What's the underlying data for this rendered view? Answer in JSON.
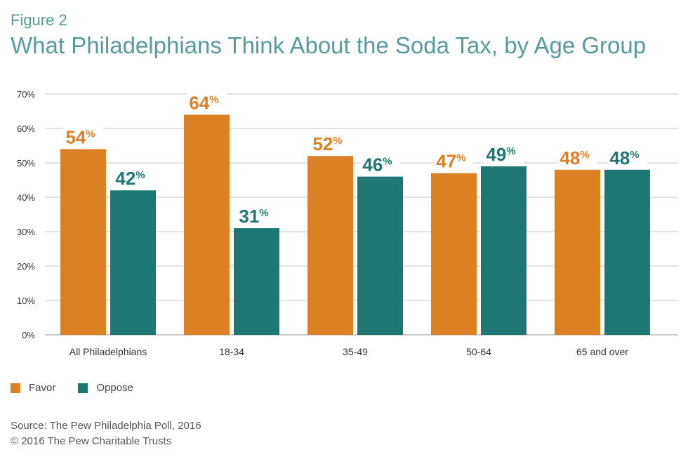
{
  "header": {
    "figure_label": "Figure 2",
    "title": "What Philadelphians Think About the Soda Tax, by Age Group"
  },
  "colors": {
    "favor": "#dc8026",
    "oppose": "#1f7773",
    "grid": "#c8c8c8",
    "axis_text": "#333333",
    "title": "#5a9a9e"
  },
  "chart_data": {
    "type": "bar",
    "categories": [
      "All Philadelphians",
      "18-34",
      "35-49",
      "50-64",
      "65 and over"
    ],
    "series": [
      {
        "name": "Favor",
        "values": [
          54,
          64,
          52,
          47,
          48
        ],
        "labels": [
          "54",
          "64",
          "52",
          "47",
          "48"
        ]
      },
      {
        "name": "Oppose",
        "values": [
          42,
          31,
          46,
          49,
          48
        ],
        "labels": [
          "42",
          "31",
          "46",
          "49",
          "48"
        ]
      }
    ],
    "value_suffix": "%",
    "ylim": [
      0,
      70
    ],
    "yticks": [
      "0%",
      "10%",
      "20%",
      "30%",
      "40%",
      "50%",
      "60%",
      "70%"
    ],
    "grid": true,
    "legend_position": "bottom-left"
  },
  "legend": {
    "favor": "Favor",
    "oppose": "Oppose"
  },
  "footer": {
    "source": "Source: The Pew Philadelphia Poll, 2016",
    "copyright": "© 2016 The Pew Charitable Trusts"
  }
}
